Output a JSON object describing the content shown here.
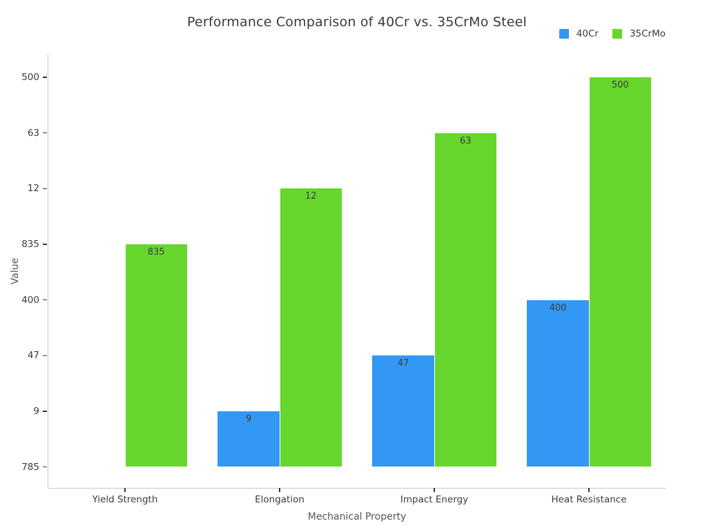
{
  "figure_title": "Performance Comparison of 40Cr vs. 35CrMo Steel",
  "chart_data": {
    "type": "bar",
    "title": "Performance Comparison of 40Cr vs. 35CrMo Steel",
    "xlabel": "Mechanical Property",
    "ylabel": "Value",
    "categories": [
      "Yield Strength",
      "Elongation",
      "Impact Energy",
      "Heat Resistance"
    ],
    "series": [
      {
        "name": "40Cr",
        "color": "#3398f3",
        "values": [
          785,
          9,
          47,
          400
        ]
      },
      {
        "name": "35CrMo",
        "color": "#66d62d",
        "values": [
          835,
          12,
          63,
          500
        ]
      }
    ],
    "bar_value_labels_visible": [
      "835",
      "9",
      "12",
      "47",
      "63",
      "400",
      "500"
    ],
    "y_axis": {
      "type": "categorical",
      "tick_labels_bottom_to_top": [
        "785",
        "9",
        "47",
        "400",
        "835",
        "12",
        "63",
        "500"
      ]
    },
    "legend": {
      "position": "top-right",
      "entries": [
        "40Cr",
        "35CrMo"
      ]
    },
    "grid": false,
    "background_color": "#ffffff",
    "text_color": "#3a3a3a"
  }
}
